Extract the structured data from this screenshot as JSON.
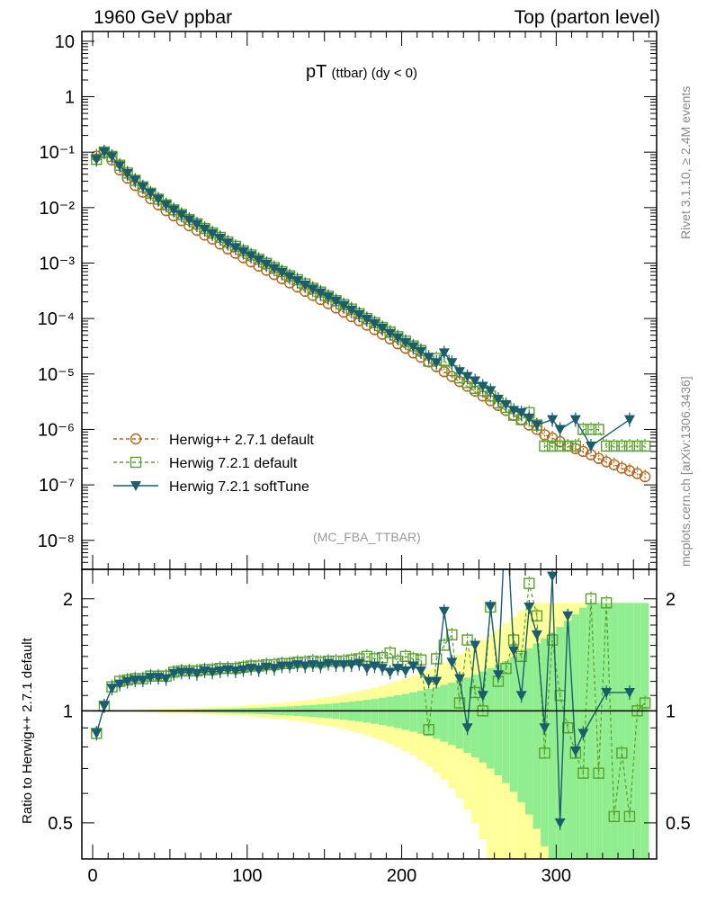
{
  "header": {
    "left": "1960 GeV ppbar",
    "right": "Top (parton level)"
  },
  "side_labels": {
    "rivet": "Rivet 3.1.10, ≥ 2.4M events",
    "mcplots": "mcplots.cern.ch [arXiv:1306.3436]"
  },
  "plot_title": {
    "main": "pT",
    "sub": "(ttbar) (dy < 0)"
  },
  "analysis_tag": "(MC_FBA_TTBAR)",
  "ratio_ylabel": "Ratio to Herwig++ 2.7.1 default",
  "colors": {
    "herwigpp": "#b5651d",
    "herwig721": "#5aa02c",
    "softtune": "#1a5e6e",
    "band_yellow": "#ffff99",
    "band_green": "#90ee90"
  },
  "chart_data": [
    {
      "type": "line",
      "yscale": "log",
      "xlim": [
        -7,
        365
      ],
      "ylim": [
        3e-09,
        15
      ],
      "y_tick_labels": [
        "10",
        "1",
        "10⁻¹",
        "10⁻²",
        "10⁻³",
        "10⁻⁴",
        "10⁻⁵",
        "10⁻⁶",
        "10⁻⁷",
        "10⁻⁸"
      ],
      "legend_position": "bottom-left",
      "series": [
        {
          "name": "Herwig++ 2.7.1 default",
          "marker": "open-circle",
          "line": "dashed",
          "x": [
            2.5,
            7.5,
            12.5,
            17.5,
            22.5,
            27.5,
            32.5,
            37.5,
            42.5,
            47.5,
            52.5,
            57.5,
            62.5,
            67.5,
            72.5,
            77.5,
            82.5,
            87.5,
            92.5,
            97.5,
            102.5,
            107.5,
            112.5,
            117.5,
            122.5,
            127.5,
            132.5,
            137.5,
            142.5,
            147.5,
            152.5,
            157.5,
            162.5,
            167.5,
            172.5,
            177.5,
            182.5,
            187.5,
            192.5,
            197.5,
            202.5,
            207.5,
            212.5,
            217.5,
            222.5,
            227.5,
            232.5,
            237.5,
            242.5,
            247.5,
            252.5,
            257.5,
            262.5,
            267.5,
            272.5,
            277.5,
            282.5,
            287.5,
            292.5,
            297.5,
            302.5,
            307.5,
            312.5,
            317.5,
            322.5,
            327.5,
            332.5,
            337.5,
            342.5,
            347.5,
            352.5,
            357.5
          ],
          "y": [
            0.085,
            0.098,
            0.072,
            0.048,
            0.034,
            0.025,
            0.019,
            0.0145,
            0.0112,
            0.0088,
            0.0071,
            0.0058,
            0.0047,
            0.0039,
            0.0032,
            0.0027,
            0.0022,
            0.0018,
            0.0015,
            0.00125,
            0.00105,
            0.00088,
            0.00074,
            0.00062,
            0.00052,
            0.00044,
            0.00037,
            0.00031,
            0.00026,
            0.00022,
            0.000185,
            0.000155,
            0.00013,
            0.000108,
            9.1e-05,
            7.6e-05,
            6.3e-05,
            5.2e-05,
            4.3e-05,
            3.5e-05,
            2.9e-05,
            2.4e-05,
            2e-05,
            1.65e-05,
            1.35e-05,
            1.1e-05,
            9e-06,
            7.3e-06,
            6e-06,
            4.9e-06,
            4e-06,
            3.3e-06,
            2.7e-06,
            2.2e-06,
            1.8e-06,
            1.5e-06,
            1.2e-06,
            1e-06,
            8e-07,
            7e-07,
            6e-07,
            5e-07,
            4.5e-07,
            4e-07,
            3.5e-07,
            3e-07,
            2.6e-07,
            2.3e-07,
            2e-07,
            1.8e-07,
            1.6e-07,
            1.4e-07
          ]
        },
        {
          "name": "Herwig 7.2.1 default",
          "marker": "open-square",
          "line": "dashed",
          "x": [
            2.5,
            7.5,
            12.5,
            17.5,
            22.5,
            27.5,
            32.5,
            37.5,
            42.5,
            47.5,
            52.5,
            57.5,
            62.5,
            67.5,
            72.5,
            77.5,
            82.5,
            87.5,
            92.5,
            97.5,
            102.5,
            107.5,
            112.5,
            117.5,
            122.5,
            127.5,
            132.5,
            137.5,
            142.5,
            147.5,
            152.5,
            157.5,
            162.5,
            167.5,
            172.5,
            177.5,
            182.5,
            187.5,
            192.5,
            197.5,
            202.5,
            207.5,
            212.5,
            217.5,
            222.5,
            227.5,
            232.5,
            237.5,
            242.5,
            247.5,
            252.5,
            257.5,
            262.5,
            267.5,
            272.5,
            277.5,
            282.5,
            287.5,
            292.5,
            297.5,
            302.5,
            307.5,
            312.5,
            317.5,
            322.5,
            327.5,
            332.5,
            337.5,
            342.5,
            347.5,
            352.5,
            357.5
          ],
          "y": [
            0.074,
            0.101,
            0.084,
            0.058,
            0.042,
            0.031,
            0.0237,
            0.0182,
            0.0142,
            0.0112,
            0.0091,
            0.0075,
            0.0061,
            0.0051,
            0.0042,
            0.0035,
            0.0029,
            0.0024,
            0.002,
            0.00166,
            0.0014,
            0.00117,
            0.00099,
            0.00083,
            0.0007,
            0.00059,
            0.0005,
            0.00042,
            0.00035,
            0.0003,
            0.000252,
            0.00021,
            0.000178,
            0.000148,
            0.000122,
            0.0001,
            8.4e-05,
            6.9e-05,
            5.7e-05,
            4.7e-05,
            3.9e-05,
            3.2e-05,
            2.65e-05,
            1.7e-05,
            1.9e-05,
            1.75e-05,
            1.15e-05,
            8.5e-06,
            7e-06,
            5.5e-06,
            5e-06,
            4e-06,
            3e-06,
            2.5e-06,
            1.8e-06,
            1.5e-06,
            2e-06,
            1.2e-06,
            5e-07,
            5e-07,
            5e-07,
            5e-07,
            5e-07,
            1e-06,
            1e-06,
            1e-06,
            5e-07,
            5e-07,
            5e-07,
            5e-07,
            5e-07,
            5e-07
          ]
        },
        {
          "name": "Herwig 7.2.1 softTune",
          "marker": "filled-triangle-down",
          "line": "solid",
          "x": [
            2.5,
            7.5,
            12.5,
            17.5,
            22.5,
            27.5,
            32.5,
            37.5,
            42.5,
            47.5,
            52.5,
            57.5,
            62.5,
            67.5,
            72.5,
            77.5,
            82.5,
            87.5,
            92.5,
            97.5,
            102.5,
            107.5,
            112.5,
            117.5,
            122.5,
            127.5,
            132.5,
            137.5,
            142.5,
            147.5,
            152.5,
            157.5,
            162.5,
            167.5,
            172.5,
            177.5,
            182.5,
            187.5,
            192.5,
            197.5,
            202.5,
            207.5,
            212.5,
            217.5,
            222.5,
            227.5,
            232.5,
            237.5,
            242.5,
            247.5,
            252.5,
            257.5,
            262.5,
            267.5,
            272.5,
            277.5,
            282.5,
            287.5,
            292.5,
            297.5,
            302.5,
            307.5,
            312.5,
            317.5,
            322.5,
            327.5,
            332.5,
            337.5,
            342.5,
            347.5,
            352.5,
            357.5
          ],
          "y": [
            0.074,
            0.1,
            0.083,
            0.057,
            0.041,
            0.031,
            0.0235,
            0.0181,
            0.0141,
            0.0111,
            0.009,
            0.0074,
            0.006,
            0.005,
            0.0041,
            0.0034,
            0.0028,
            0.0023,
            0.0019,
            0.00161,
            0.00136,
            0.00114,
            0.00096,
            0.0008,
            0.00068,
            0.00057,
            0.00048,
            0.0004,
            0.00034,
            0.00029,
            0.000245,
            0.000205,
            0.000172,
            0.000142,
            0.000118,
            9.7e-05,
            8.1e-05,
            6.7e-05,
            5.4e-05,
            4.5e-05,
            3.7e-05,
            3.1e-05,
            2.55e-05,
            2e-05,
            1.6e-05,
            2.4e-05,
            1.6e-05,
            1.1e-05,
            9e-06,
            7.5e-06,
            6e-06,
            5e-06,
            3.5e-06,
            2.8e-06,
            2.2e-06,
            2e-06,
            1.6e-06,
            1.2e-06,
            null,
            1.5e-06,
            1e-06,
            null,
            1.5e-06,
            null,
            5e-07,
            null,
            null,
            null,
            null,
            1.5e-06,
            null,
            null
          ]
        }
      ]
    },
    {
      "type": "line",
      "ylabel": "Ratio to Herwig++ 2.7.1 default",
      "xlim": [
        -7,
        365
      ],
      "ylim": [
        0.4,
        2.4
      ],
      "yscale": "log",
      "y_tick_labels": [
        "0.5",
        "1",
        "2"
      ],
      "x_tick_labels": [
        "0",
        "100",
        "200",
        "300"
      ],
      "reference_line": 1,
      "series": [
        {
          "name": "Herwig 7.2.1 default",
          "x": [
            2.5,
            7.5,
            12.5,
            17.5,
            22.5,
            27.5,
            32.5,
            37.5,
            42.5,
            47.5,
            52.5,
            57.5,
            62.5,
            67.5,
            72.5,
            77.5,
            82.5,
            87.5,
            92.5,
            97.5,
            102.5,
            107.5,
            112.5,
            117.5,
            122.5,
            127.5,
            132.5,
            137.5,
            142.5,
            147.5,
            152.5,
            157.5,
            162.5,
            167.5,
            172.5,
            177.5,
            182.5,
            187.5,
            192.5,
            197.5,
            202.5,
            207.5,
            212.5,
            217.5,
            222.5,
            227.5,
            232.5,
            237.5,
            242.5,
            247.5,
            252.5,
            257.5,
            262.5,
            267.5,
            272.5,
            277.5,
            282.5,
            287.5,
            292.5,
            297.5,
            302.5,
            307.5,
            312.5,
            317.5,
            322.5,
            327.5,
            332.5,
            337.5,
            342.5,
            347.5,
            352.5,
            357.5
          ],
          "y": [
            0.87,
            1.03,
            1.16,
            1.2,
            1.21,
            1.22,
            1.22,
            1.24,
            1.24,
            1.24,
            1.27,
            1.28,
            1.28,
            1.28,
            1.29,
            1.29,
            1.3,
            1.3,
            1.3,
            1.31,
            1.32,
            1.32,
            1.33,
            1.33,
            1.34,
            1.34,
            1.35,
            1.35,
            1.36,
            1.35,
            1.36,
            1.36,
            1.36,
            1.37,
            1.38,
            1.4,
            1.38,
            1.39,
            1.43,
            1.36,
            1.4,
            1.38,
            1.37,
            0.89,
            1.38,
            1.5,
            1.6,
            1.05,
            1.55,
            1.12,
            1.0,
            1.9,
            1.2,
            1.3,
            1.55,
            1.4,
            2.2,
            1.8,
            0.77,
            1.55,
            1.1,
            0.9,
            0.77,
            0.68,
            2.0,
            0.68,
            1.95,
            0.52,
            0.77,
            0.52,
            1.0,
            1.05
          ]
        },
        {
          "name": "Herwig 7.2.1 softTune",
          "x": [
            2.5,
            7.5,
            12.5,
            17.5,
            22.5,
            27.5,
            32.5,
            37.5,
            42.5,
            47.5,
            52.5,
            57.5,
            62.5,
            67.5,
            72.5,
            77.5,
            82.5,
            87.5,
            92.5,
            97.5,
            102.5,
            107.5,
            112.5,
            117.5,
            122.5,
            127.5,
            132.5,
            137.5,
            142.5,
            147.5,
            152.5,
            157.5,
            162.5,
            167.5,
            172.5,
            177.5,
            182.5,
            187.5,
            192.5,
            197.5,
            202.5,
            207.5,
            212.5,
            217.5,
            222.5,
            227.5,
            232.5,
            237.5,
            242.5,
            247.5,
            252.5,
            257.5,
            262.5,
            267.5,
            272.5,
            277.5,
            282.5,
            287.5,
            292.5,
            297.5,
            302.5,
            307.5,
            312.5,
            317.5,
            332.5,
            347.5
          ],
          "y": [
            0.87,
            1.03,
            1.15,
            1.18,
            1.2,
            1.21,
            1.21,
            1.23,
            1.23,
            1.22,
            1.26,
            1.27,
            1.27,
            1.26,
            1.28,
            1.27,
            1.28,
            1.29,
            1.28,
            1.29,
            1.3,
            1.29,
            1.31,
            1.3,
            1.32,
            1.32,
            1.33,
            1.32,
            1.33,
            1.32,
            1.34,
            1.33,
            1.33,
            1.33,
            1.34,
            1.3,
            1.32,
            1.3,
            1.27,
            1.3,
            1.28,
            1.32,
            1.28,
            1.2,
            1.2,
            1.85,
            1.35,
            1.22,
            0.9,
            1.5,
            1.1,
            1.9,
            1.25,
            3.5,
            1.45,
            1.1,
            1.9,
            1.6,
            0.9,
            2.3,
            0.5,
            1.8,
            0.78,
            0.87,
            1.12,
            1.12
          ]
        }
      ]
    }
  ]
}
